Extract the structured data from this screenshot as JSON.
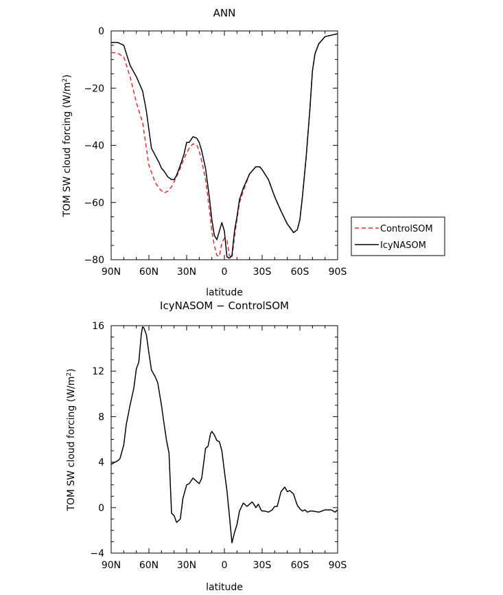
{
  "colors": {
    "control": "#e0282d",
    "icy": "#000000",
    "axis": "#000000"
  },
  "chart_data": [
    {
      "type": "line",
      "title": "ANN",
      "xlabel": "latitude",
      "ylabel": "TOM SW cloud forcing (W/m",
      "ylabel_sup": "2",
      "ylabel_end": ")",
      "xlim": [
        90,
        -90
      ],
      "ylim": [
        -80,
        0
      ],
      "x_ticks": [
        90,
        60,
        30,
        0,
        -30,
        -60,
        -90
      ],
      "x_tick_labels": [
        "90N",
        "60N",
        "30N",
        "0",
        "30S",
        "60S",
        "90S"
      ],
      "y_ticks": [
        0,
        -20,
        -40,
        -60,
        -80
      ],
      "y_tick_labels": [
        "0",
        "−20",
        "−40",
        "−60",
        "−80"
      ],
      "legend_position": "right",
      "series": [
        {
          "name": "ControlSOM",
          "style": "dashed",
          "color": "#e0282d",
          "x": [
            90,
            85,
            80,
            75,
            70,
            65,
            60,
            55,
            52,
            48,
            45,
            42,
            38,
            35,
            32,
            28,
            25,
            22,
            20,
            18,
            15,
            12,
            10,
            8,
            6,
            4,
            2,
            0,
            -2,
            -4,
            -6,
            -8,
            -10,
            -12,
            -15,
            -20,
            -25,
            -28,
            -30,
            -35,
            -40,
            -45,
            -50,
            -55,
            -58,
            -60,
            -62,
            -65,
            -68,
            -70,
            -72,
            -75,
            -80,
            -85,
            -90
          ],
          "y": [
            -7.5,
            -7.8,
            -9,
            -16,
            -25,
            -32,
            -47,
            -53,
            -55,
            -56.7,
            -56,
            -54.5,
            -51,
            -48,
            -44.5,
            -41,
            -39.5,
            -39.8,
            -42,
            -45.5,
            -52,
            -62,
            -70,
            -75,
            -78.5,
            -78.8,
            -74,
            -72.5,
            -73,
            -78.5,
            -79.5,
            -72,
            -66,
            -60,
            -56,
            -50,
            -47.5,
            -47.5,
            -48.5,
            -52,
            -58,
            -63,
            -67.5,
            -70.5,
            -69.5,
            -66,
            -58,
            -44,
            -27,
            -14,
            -8,
            -4.5,
            -2,
            -1.5,
            -1
          ]
        },
        {
          "name": "IcyNASOM",
          "style": "solid",
          "color": "#000000",
          "x": [
            90,
            85,
            80,
            75,
            70,
            65,
            62,
            58,
            55,
            52,
            50,
            48,
            45,
            42,
            40,
            38,
            35,
            32,
            30,
            28,
            25,
            22,
            20,
            18,
            15,
            12,
            10,
            8,
            6,
            4,
            2,
            0,
            -2,
            -4,
            -6,
            -8,
            -10,
            -12,
            -15,
            -20,
            -25,
            -28,
            -30,
            -35,
            -40,
            -45,
            -50,
            -55,
            -58,
            -60,
            -62,
            -65,
            -68,
            -70,
            -72,
            -75,
            -80,
            -85,
            -90
          ],
          "y": [
            -4,
            -4,
            -5,
            -12,
            -16,
            -21,
            -28,
            -41,
            -43.5,
            -46,
            -48,
            -49,
            -51,
            -52,
            -52,
            -50.5,
            -47,
            -43,
            -39,
            -39,
            -37,
            -37.5,
            -39,
            -42,
            -48,
            -58,
            -66,
            -71.5,
            -73,
            -70,
            -67,
            -70,
            -79,
            -79.5,
            -78.5,
            -70,
            -65,
            -59,
            -55,
            -50,
            -47.5,
            -47.5,
            -48.5,
            -52,
            -58,
            -63,
            -67.5,
            -70.5,
            -69.5,
            -66,
            -58,
            -44,
            -27,
            -14,
            -8,
            -4.5,
            -2,
            -1.5,
            -1
          ]
        }
      ]
    },
    {
      "type": "line",
      "title": "IcyNASOM − ControlSOM",
      "xlabel": "latitude",
      "ylabel": "TOM SW cloud forcing (W/m",
      "ylabel_sup": "2",
      "ylabel_end": ")",
      "xlim": [
        90,
        -90
      ],
      "ylim": [
        -4,
        16
      ],
      "x_ticks": [
        90,
        60,
        30,
        0,
        -30,
        -60,
        -90
      ],
      "x_tick_labels": [
        "90N",
        "60N",
        "30N",
        "0",
        "30S",
        "60S",
        "90S"
      ],
      "y_ticks": [
        16,
        12,
        8,
        4,
        0,
        -4
      ],
      "y_tick_labels": [
        "16",
        "12",
        "8",
        "4",
        "0",
        "−4"
      ],
      "series": [
        {
          "style": "solid",
          "color": "#000000",
          "x": [
            90,
            87,
            85,
            83,
            80,
            78,
            75,
            72,
            70,
            68,
            66,
            65,
            64,
            63,
            62,
            60,
            58,
            55,
            53,
            50,
            48,
            46,
            44,
            42,
            40,
            38,
            35,
            33,
            30,
            28,
            25,
            22,
            20,
            18,
            15,
            13,
            11,
            10,
            8,
            6,
            4,
            2,
            0,
            -2,
            -4,
            -6,
            -8,
            -10,
            -12,
            -15,
            -18,
            -20,
            -22,
            -24,
            -25,
            -27,
            -29,
            -30,
            -32,
            -35,
            -38,
            -40,
            -42,
            -45,
            -48,
            -50,
            -52,
            -55,
            -57,
            -58,
            -60,
            -62,
            -64,
            -66,
            -68,
            -70,
            -75,
            -80,
            -85,
            -88,
            -90
          ],
          "y": [
            3.8,
            4,
            4.1,
            4.3,
            5.5,
            7.3,
            9,
            10.5,
            12.2,
            12.8,
            15.3,
            15.9,
            15.8,
            15.5,
            15.2,
            13.6,
            12.1,
            11.5,
            11,
            9,
            7.4,
            5.9,
            4.8,
            -0.5,
            -0.7,
            -1.3,
            -1,
            0.8,
            2,
            2.1,
            2.6,
            2.3,
            2.1,
            2.6,
            5.2,
            5.4,
            6.5,
            6.7,
            6.4,
            5.9,
            5.8,
            5,
            3.2,
            1.5,
            -0.7,
            -3.1,
            -2.2,
            -1.5,
            -0.3,
            0.4,
            0.1,
            0.3,
            0.5,
            0.2,
            0,
            0.3,
            -0.2,
            -0.3,
            -0.3,
            -0.4,
            -0.2,
            0.1,
            0.1,
            1.4,
            1.8,
            1.4,
            1.5,
            1.2,
            0.5,
            0.2,
            -0.1,
            -0.3,
            -0.2,
            -0.4,
            -0.3,
            -0.3,
            -0.4,
            -0.2,
            -0.2,
            -0.4,
            -0.2
          ]
        }
      ]
    }
  ]
}
